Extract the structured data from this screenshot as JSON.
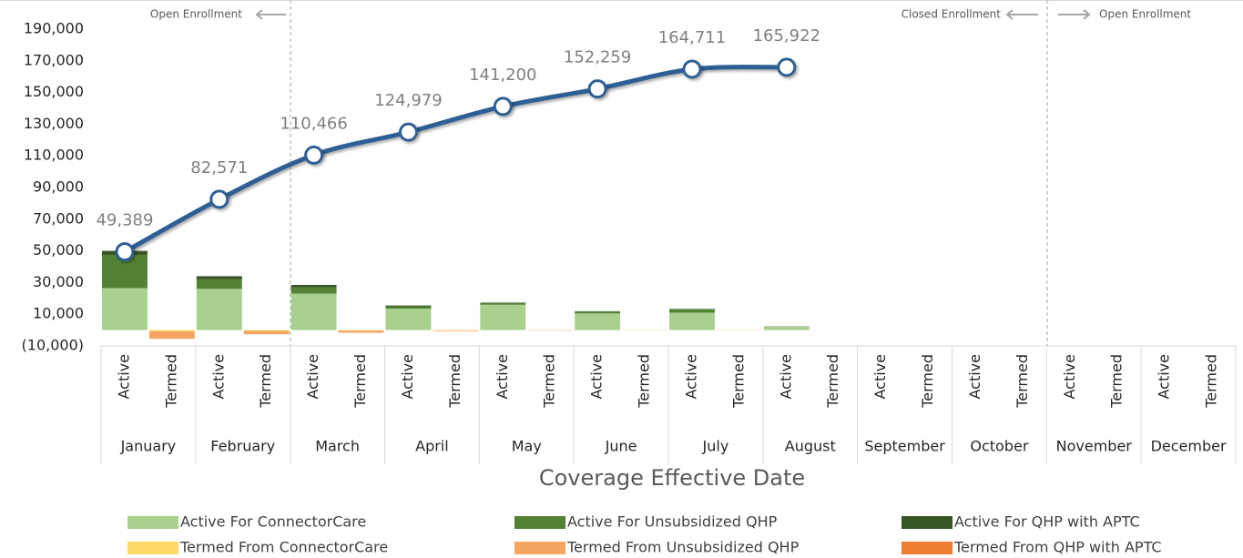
{
  "chart_data": {
    "type": "stacked-bar-line",
    "xlabel": "Coverage Effective Date",
    "annotations": [
      "Open Enrollment",
      "Closed Enrollment",
      "Open Enrollment"
    ],
    "months": [
      "January",
      "February",
      "March",
      "April",
      "May",
      "June",
      "July",
      "August",
      "September",
      "October",
      "November",
      "December"
    ],
    "subcategories": [
      "Active",
      "Termed"
    ],
    "ylim": [
      -10000,
      190000
    ],
    "yticks": [
      {
        "value": -10000,
        "label": "(10,000)"
      },
      {
        "value": 10000,
        "label": "10,000"
      },
      {
        "value": 30000,
        "label": "30,000"
      },
      {
        "value": 50000,
        "label": "50,000"
      },
      {
        "value": 70000,
        "label": "70,000"
      },
      {
        "value": 90000,
        "label": "90,000"
      },
      {
        "value": 110000,
        "label": "110,000"
      },
      {
        "value": 130000,
        "label": "130,000"
      },
      {
        "value": 150000,
        "label": "150,000"
      },
      {
        "value": 170000,
        "label": "170,000"
      },
      {
        "value": 190000,
        "label": "190,000"
      }
    ],
    "series": [
      {
        "name": "Active For ConnectorCare",
        "color": "#a9d18e",
        "slot": 0,
        "values": [
          26500,
          26000,
          23000,
          13500,
          16000,
          10500,
          11000,
          2000,
          null,
          null,
          null,
          null
        ]
      },
      {
        "name": "Active For Unsubsidized QHP",
        "color": "#548235",
        "slot": 0,
        "values": [
          21000,
          6000,
          4000,
          1500,
          1000,
          1200,
          2000,
          200,
          null,
          null,
          null,
          null
        ]
      },
      {
        "name": "Active For QHP with APTC",
        "color": "#375623",
        "slot": 0,
        "values": [
          2500,
          2000,
          1500,
          500,
          300,
          200,
          300,
          100,
          null,
          null,
          null,
          null
        ]
      },
      {
        "name": "Termed From ConnectorCare",
        "color": "#ffd966",
        "slot": 1,
        "values": [
          -800,
          -500,
          -400,
          -200,
          -100,
          -100,
          -100,
          null,
          null,
          null,
          null,
          null
        ]
      },
      {
        "name": "Termed From Unsubsidized QHP",
        "color": "#f4a460",
        "slot": 1,
        "values": [
          -4500,
          -2000,
          -1200,
          -400,
          -200,
          -100,
          -100,
          null,
          null,
          null,
          null,
          null
        ]
      },
      {
        "name": "Termed From QHP with APTC",
        "color": "#ed7d31",
        "slot": 1,
        "values": [
          -200,
          -100,
          -100,
          null,
          null,
          null,
          null,
          null,
          null,
          null,
          null,
          null
        ]
      }
    ],
    "line": {
      "color": "#2e5f94",
      "slot": 0,
      "values": [
        49389,
        82571,
        110466,
        124979,
        141200,
        152259,
        164711,
        165922,
        null,
        null,
        null,
        null
      ],
      "value_labels": [
        "49,389",
        "82,571",
        "110,466",
        "124,979",
        "141,200",
        "152,259",
        "164,711",
        "165,922",
        null,
        null,
        null,
        null
      ]
    }
  }
}
